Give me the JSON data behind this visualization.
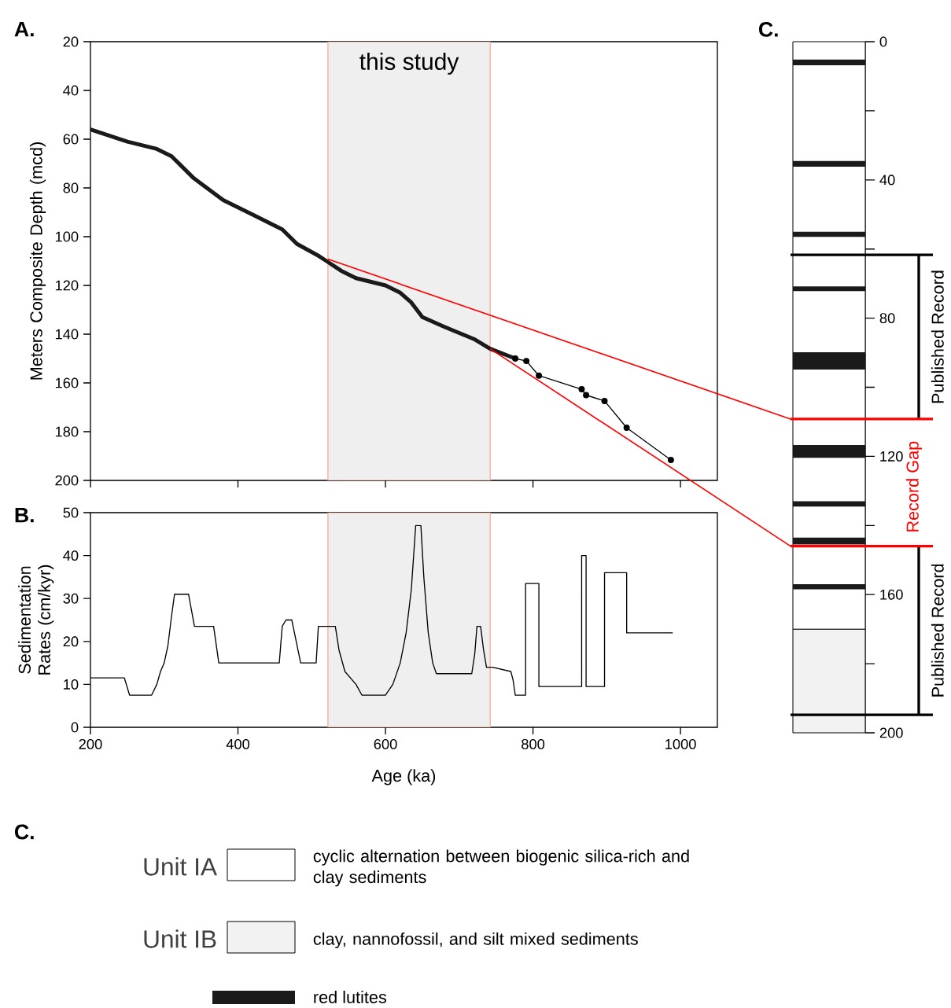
{
  "chart_data": [
    {
      "type": "line",
      "title": "A.",
      "ylabel": "Meters Composite Depth (mcd)",
      "xlim": [
        200,
        1050
      ],
      "xticks": [
        200,
        400,
        600,
        800,
        1000
      ],
      "ylim": [
        200,
        20
      ],
      "yticks": [
        20,
        40,
        60,
        80,
        100,
        120,
        140,
        160,
        180,
        200
      ],
      "tick_labels": "y",
      "bands": [
        {
          "axis": "x",
          "from": 522,
          "to": 742,
          "label": "this study",
          "color": "#efefef"
        }
      ],
      "series": [
        {
          "color": "#1a1a1a",
          "x": [
            200,
            250,
            290,
            310,
            340,
            380,
            420,
            460,
            480,
            510,
            520,
            540,
            560,
            600,
            620,
            635,
            650,
            680,
            720,
            742,
            776
          ],
          "values": [
            56,
            61,
            64,
            67,
            76,
            85,
            91,
            97,
            103,
            108,
            110,
            114,
            117,
            120,
            123,
            127,
            133,
            137,
            142,
            146,
            150
          ]
        },
        {
          "color": "#000000",
          "marker": "circle",
          "x": [
            776,
            791,
            808,
            866,
            872,
            897,
            927,
            987
          ],
          "values": [
            150,
            151,
            157,
            162.6,
            165,
            167.4,
            178.4,
            191.6
          ]
        }
      ]
    },
    {
      "type": "line",
      "title": "B.",
      "xlabel": "Age (ka)",
      "ylabel": "Sedimentation Rates (cm/kyr)",
      "xlim": [
        200,
        1050
      ],
      "xticks": [
        200,
        400,
        600,
        800,
        1000
      ],
      "ylim": [
        0,
        50
      ],
      "yticks": [
        0,
        10,
        20,
        30,
        40,
        50
      ],
      "bands": [
        {
          "axis": "x",
          "from": 522,
          "to": 742,
          "color": "#efefef"
        }
      ],
      "series": [
        {
          "color": "#000000",
          "x": [
            200,
            246,
            253,
            283,
            290,
            295,
            300,
            305,
            310,
            314,
            333,
            341,
            367,
            374,
            456,
            460,
            465,
            473,
            479,
            485,
            506,
            509,
            532,
            537,
            545,
            560,
            568,
            600,
            610,
            620,
            628,
            635,
            641,
            648,
            652,
            658,
            664,
            669,
            717,
            721,
            724,
            729,
            733,
            737,
            745,
            770,
            773,
            776,
            790,
            790,
            808,
            808,
            866,
            866,
            872,
            872,
            897,
            897,
            927,
            927,
            989
          ],
          "values": [
            11.5,
            11.5,
            7.5,
            7.5,
            10,
            13,
            15,
            19,
            26,
            31,
            31,
            23.5,
            23.5,
            15,
            15,
            23.5,
            25,
            25,
            20,
            15,
            15,
            23.5,
            23.5,
            18,
            13,
            10,
            7.5,
            7.5,
            10,
            15,
            22,
            32,
            47,
            47,
            35,
            22,
            15,
            12.5,
            12.5,
            17,
            23.5,
            23.5,
            18,
            14,
            14,
            13,
            11,
            7.5,
            7.5,
            33.5,
            33.5,
            9.5,
            9.5,
            40,
            40,
            9.5,
            9.5,
            36,
            36,
            22,
            22
          ]
        }
      ]
    },
    {
      "type": "bar",
      "title": "C.",
      "stacked": true,
      "categories": [
        null
      ],
      "ylim": [
        200,
        0
      ],
      "yticks": [
        0,
        {
          "value": 20,
          "label": null
        },
        40,
        {
          "value": 60,
          "label": null
        },
        80,
        {
          "value": 100,
          "label": null
        },
        120,
        {
          "value": 140,
          "label": null
        },
        160,
        {
          "value": 180,
          "label": null
        },
        200
      ],
      "tick_labels": "y",
      "series": [
        {
          "name": "Unit IA",
          "color": "#ffffff",
          "values": [
            170
          ]
        },
        {
          "name": "Unit IB",
          "color": "#f2f2f2",
          "values": [
            30
          ]
        }
      ],
      "bands": [
        {
          "axis": "y",
          "from": 5.2,
          "to": 6.8,
          "color": "#1a1a1a"
        },
        {
          "axis": "y",
          "from": 34.5,
          "to": 36.2,
          "color": "#1a1a1a"
        },
        {
          "axis": "y",
          "from": 55,
          "to": 56.5,
          "color": "#1a1a1a"
        },
        {
          "axis": "y",
          "from": 70.8,
          "to": 72.2,
          "color": "#1a1a1a"
        },
        {
          "axis": "y",
          "from": 89.9,
          "to": 94.9,
          "color": "#1a1a1a"
        },
        {
          "axis": "y",
          "from": 116.7,
          "to": 120.4,
          "color": "#1a1a1a"
        },
        {
          "axis": "y",
          "from": 133,
          "to": 134.5,
          "color": "#1a1a1a"
        },
        {
          "axis": "y",
          "from": 143.5,
          "to": 145.5,
          "color": "#1a1a1a"
        },
        {
          "axis": "y",
          "from": 157,
          "to": 158.5,
          "color": "#1a1a1a"
        }
      ],
      "ref_lines": [
        {
          "axis": "y",
          "value": 61.7,
          "color": "#000000"
        },
        {
          "axis": "y",
          "value": 109.2,
          "label": "Record Gap",
          "color": "#ff0000"
        },
        {
          "axis": "y",
          "value": 146,
          "color": "#ff0000"
        },
        {
          "axis": "y",
          "value": 194.8,
          "color": "#000000"
        }
      ],
      "legend": "bottom",
      "legend_title": "C.",
      "annotations": [
        "cyclic alternation between biogenic silica-rich and clay sediments",
        "clay, nannofossil, and silt mixed sediments",
        "red lutites",
        "Published Record",
        "Published Record"
      ]
    }
  ]
}
